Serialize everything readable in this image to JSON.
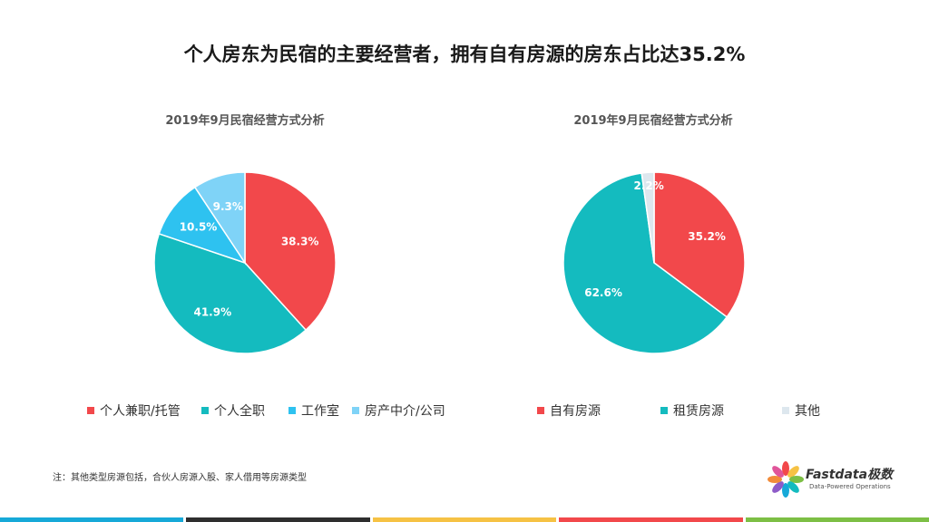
{
  "slide_title": "个人房东为民宿的主要经营者，拥有自有房源的房东占比达35.2%",
  "footnote": "注：其他类型房源包括，合伙人房源入股、家人借用等房源类型",
  "logo": {
    "name": "Fastdata极数",
    "tagline": "Data-Powered Operations"
  },
  "colors": {
    "red": "#F2484B",
    "teal": "#14BBBF",
    "blue": "#2EC2F0",
    "lightblue": "#7FD3F7",
    "pale": "#DDE7EE"
  },
  "bottom_bar_colors": [
    "#17A9D8",
    "#2E2E2E",
    "#F6C244",
    "#F2484B",
    "#7DBF45"
  ],
  "chart_data": [
    {
      "type": "pie",
      "title": "2019年9月民宿经营方式分析",
      "labels": [
        "个人兼职/托管",
        "个人全职",
        "工作室",
        "房产中介/公司"
      ],
      "values": [
        38.3,
        41.9,
        10.5,
        9.3
      ],
      "value_labels": [
        "38.3%",
        "41.9%",
        "10.5%",
        "9.3%"
      ],
      "colors": [
        "#F2484B",
        "#14BBBF",
        "#2EC2F0",
        "#7FD3F7"
      ],
      "legend": "bottom"
    },
    {
      "type": "pie",
      "title": "2019年9月民宿经营方式分析",
      "labels": [
        "自有房源",
        "租赁房源",
        "其他"
      ],
      "values": [
        35.2,
        62.6,
        2.2
      ],
      "value_labels": [
        "35.2%",
        "62.6%",
        "2.2%"
      ],
      "colors": [
        "#F2484B",
        "#14BBBF",
        "#DDE7EE"
      ],
      "legend": "bottom"
    }
  ]
}
